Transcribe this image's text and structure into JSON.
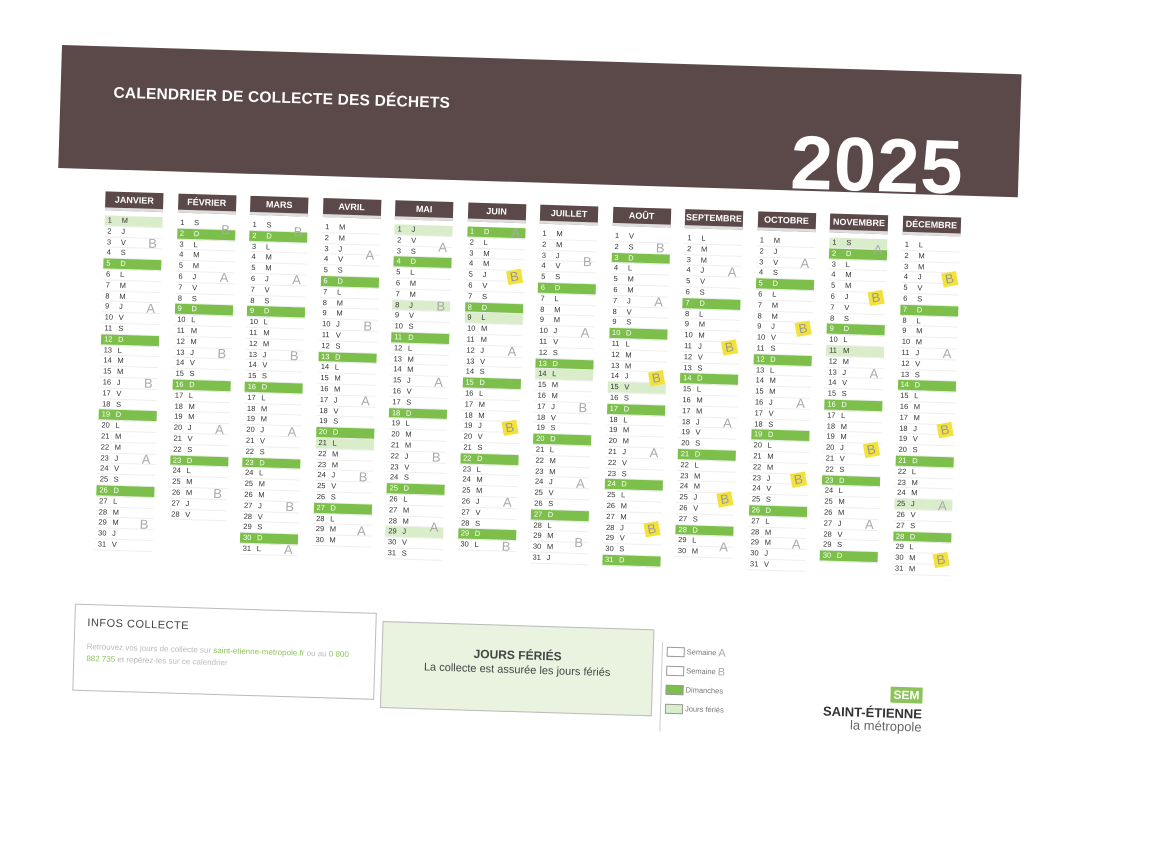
{
  "header": {
    "title": "CALENDRIER DE COLLECTE DES DÉCHETS",
    "year": "2025"
  },
  "colors": {
    "banner": "#5b4848",
    "sunday": "#7cbf4a",
    "holiday": "#d9edca",
    "highlight": "#f4e23c"
  },
  "months": [
    {
      "name": "JANVIER",
      "letters": "MJVSDLMMJVSDLMMJVSDLMMJVSDLMMJV",
      "holidays": [
        1
      ],
      "weeks": [
        "B",
        "A",
        "B",
        "A",
        "B"
      ],
      "highlighted_weeks": []
    },
    {
      "name": "FÉVRIER",
      "letters": "SDLMMJVSDLMMJVSDLMMJVSDLMMJV",
      "holidays": [],
      "weeks": [
        "B",
        "A",
        "B",
        "A",
        "B"
      ],
      "highlighted_weeks": []
    },
    {
      "name": "MARS",
      "letters": "SDLMMJVSDLMMJVSDLMMJVSDLMMJVSDL",
      "holidays": [],
      "weeks": [
        "B",
        "A",
        "B",
        "A",
        "B",
        "A"
      ],
      "highlighted_weeks": []
    },
    {
      "name": "AVRIL",
      "letters": "MMJVSDLMMJVSDLMMJVSDLMMJVSDLMM",
      "holidays": [
        21
      ],
      "weeks": [
        "A",
        "B",
        "A",
        "B",
        "A"
      ],
      "highlighted_weeks": []
    },
    {
      "name": "MAI",
      "letters": "JVSDLMMJVSDLMMJVSDLMMJVSDLMMJVS",
      "holidays": [
        1,
        8,
        29
      ],
      "weeks": [
        "A",
        "B",
        "A",
        "B",
        "A"
      ],
      "highlighted_weeks": []
    },
    {
      "name": "JUIN",
      "letters": "DLMMJVSDLMMJVSDLMMJVSDLMMJVSDL",
      "holidays": [
        9
      ],
      "weeks": [
        "A",
        "B",
        "A",
        "B",
        "A",
        "B"
      ],
      "highlighted_weeks": [
        1,
        3
      ]
    },
    {
      "name": "JUILLET",
      "letters": "MMJVSDLMMJVSDLMMJVSDLMMJVSDLMMJ",
      "holidays": [
        14
      ],
      "weeks": [
        "B",
        "A",
        "B",
        "A",
        "B"
      ],
      "highlighted_weeks": []
    },
    {
      "name": "AOÛT",
      "letters": "VSDLMMJVSDLMMJVSDLMMJVSDLMMJVSD",
      "holidays": [
        15
      ],
      "weeks": [
        "B",
        "A",
        "B",
        "A",
        "B"
      ],
      "highlighted_weeks": [
        2,
        4
      ]
    },
    {
      "name": "SEPTEMBRE",
      "letters": "LMMJVSDLMMJVSDLMMJVSDLMMJVSDLM",
      "holidays": [],
      "weeks": [
        "A",
        "B",
        "A",
        "B",
        "A"
      ],
      "highlighted_weeks": [
        1,
        3
      ]
    },
    {
      "name": "OCTOBRE",
      "letters": "MJVSDLMMJVSDLMMJVSDLMMJVSDLMMJV",
      "holidays": [],
      "weeks": [
        "A",
        "B",
        "A",
        "B",
        "A"
      ],
      "highlighted_weeks": [
        1,
        3
      ]
    },
    {
      "name": "NOVEMBRE",
      "letters": "SDLMMJVSDLMMJVSDLMMJVSDLMMJVSD",
      "holidays": [
        1,
        11
      ],
      "weeks": [
        "A",
        "B",
        "A",
        "B",
        "A"
      ],
      "highlighted_weeks": [
        1,
        3
      ]
    },
    {
      "name": "DÉCEMBRE",
      "letters": "LMMJVSDLMMJVSDLMMJVSDLMMJVSDLMM",
      "holidays": [
        25
      ],
      "weeks": [
        "B",
        "A",
        "B",
        "A",
        "B"
      ],
      "highlighted_weeks": [
        0,
        2,
        4
      ]
    }
  ],
  "infos": {
    "title": "INFOS COLLECTE",
    "text1": "Retrouvez vos jours de collecte sur ",
    "link": "saint-etienne-metropole.fr",
    "text2": " ou au ",
    "phone": "0 800 882 735",
    "text3": " et repérez-les sur ce calendrier"
  },
  "feries": {
    "title": "JOURS FÉRIÉS",
    "text": "La collecte est assurée les jours fériés"
  },
  "legend": [
    {
      "label": "Semaine",
      "mark": "A"
    },
    {
      "label": "Semaine",
      "mark": "B"
    },
    {
      "label": "Dimanches",
      "mark": ""
    },
    {
      "label": "Jours fériés",
      "mark": ""
    }
  ],
  "logo": {
    "badge": "SEM",
    "line1": "SAINT-ÉTIENNE",
    "line2": "la métropole"
  }
}
